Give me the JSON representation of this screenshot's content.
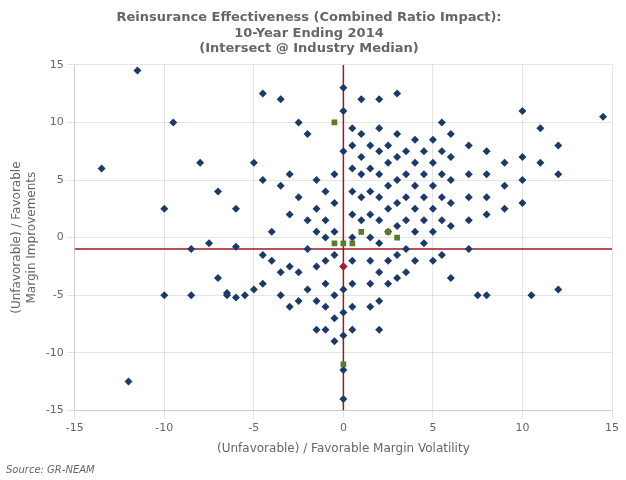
{
  "chart_data": {
    "type": "scatter",
    "title": [
      "Reinsurance Effectiveness (Combined Ratio Impact):",
      "10-Year Ending 2014",
      "(Intersect @ Industry Median)"
    ],
    "x_label": "(Unfavorable) / Favorable Margin Volatility",
    "y_label": [
      "(Unfavorable) / Favorable",
      "Margin Improvements"
    ],
    "source": "Source: GR-NEAM",
    "xlim": [
      -15,
      15
    ],
    "ylim": [
      -15,
      15
    ],
    "xticks": [
      -15,
      -10,
      -5,
      0,
      5,
      10,
      15
    ],
    "yticks": [
      -15,
      -10,
      -5,
      0,
      5,
      10,
      15
    ],
    "grid": true,
    "vlines": [
      {
        "x": 0,
        "color": "#9B1B1B"
      }
    ],
    "hlines": [
      {
        "y": -1.0,
        "color": "#9B1B1B"
      }
    ],
    "series": [
      {
        "color": "#1B3A6B",
        "marker": "diamond",
        "x": [
          -13.5,
          -11.5,
          -9.5,
          -10.0,
          -8.0,
          -12.0,
          -10.0,
          -8.5,
          -7.0,
          -6.5,
          -4.5,
          -3.5,
          -2.5,
          -4.5,
          -3.5,
          -3.0,
          -5.0,
          -2.0,
          -1.5,
          -1.0,
          -0.5,
          -4.0,
          -3.0,
          -2.5,
          -2.0,
          -1.5,
          -1.0,
          -0.5,
          -4.5,
          -4.0,
          -3.5,
          -3.0,
          -2.5,
          -2.0,
          -1.5,
          -1.0,
          -0.5,
          -0.5,
          -1.5,
          -1.0,
          -3.0,
          -2.5,
          -2.0,
          -1.5,
          -1.0,
          -0.5,
          -1.5,
          -1.0,
          -0.5,
          -0.5,
          -1.0,
          -3.5,
          -4.5,
          -5.5,
          -5.0,
          -6.0,
          -7.0,
          -6.0,
          -7.5,
          -8.5,
          -6.0,
          -6.5,
          0.0,
          0.0,
          0.5,
          0.0,
          0.5,
          1.0,
          0.5,
          1.0,
          1.5,
          2.0,
          2.5,
          3.0,
          3.5,
          4.0,
          4.5,
          5.0,
          5.5,
          6.0,
          3.0,
          2.0,
          1.0,
          7.0,
          5.5,
          8.0,
          9.0,
          10.0,
          10.0,
          11.0,
          12.0,
          14.5,
          0.5,
          1.0,
          1.5,
          2.0,
          2.5,
          3.0,
          3.5,
          4.0,
          4.5,
          5.0,
          5.5,
          6.0,
          7.0,
          8.0,
          9.0,
          10.0,
          11.0,
          12.0,
          0.5,
          1.0,
          1.5,
          2.0,
          2.5,
          3.0,
          3.5,
          4.0,
          4.5,
          5.0,
          5.5,
          6.0,
          7.0,
          8.0,
          9.0,
          10.0,
          0.5,
          1.0,
          1.5,
          2.0,
          2.5,
          3.0,
          3.5,
          4.0,
          4.5,
          5.0,
          5.5,
          6.0,
          7.0,
          8.0,
          1.5,
          2.0,
          2.5,
          3.0,
          3.5,
          4.0,
          4.5,
          5.0,
          5.5,
          6.0,
          7.0,
          8.0,
          1.5,
          2.0,
          2.5,
          3.0,
          3.5,
          4.0,
          5.0,
          1.5,
          2.0,
          2.5,
          3.0,
          1.5,
          2.0,
          2.0,
          0.0,
          0.0,
          0.5,
          0.0,
          0.5,
          0.5,
          0.5,
          0.0,
          0.0,
          0.0,
          6.0,
          7.5,
          10.5,
          12.0
        ],
        "values": [
          6.0,
          14.5,
          10.0,
          2.5,
          6.5,
          -12.5,
          -5.0,
          -5.0,
          -3.5,
          -5.0,
          12.5,
          12.0,
          10.0,
          5.0,
          4.5,
          5.5,
          6.5,
          9.0,
          5.0,
          4.0,
          5.5,
          0.5,
          2.0,
          3.5,
          1.5,
          2.5,
          1.5,
          3.0,
          -1.5,
          -2.0,
          -3.0,
          -2.5,
          -3.0,
          -1.0,
          0.5,
          0.0,
          0.5,
          -1.5,
          -2.5,
          -2.0,
          -6.0,
          -5.5,
          -4.5,
          -5.5,
          -4.0,
          -5.0,
          -8.0,
          -6.0,
          -7.0,
          -9.0,
          -8.0,
          -5.0,
          -4.0,
          -5.0,
          -4.5,
          2.5,
          4.0,
          -0.8,
          -0.5,
          -1.0,
          -5.2,
          -4.8,
          13.0,
          11.0,
          9.5,
          7.5,
          8.0,
          9.0,
          6.0,
          7.0,
          8.0,
          9.5,
          8.0,
          9.0,
          7.5,
          8.5,
          7.5,
          8.5,
          7.5,
          9.0,
          12.5,
          12.0,
          12.0,
          8.0,
          10.0,
          7.5,
          6.5,
          7.0,
          11.0,
          9.5,
          8.0,
          10.5,
          4.0,
          5.5,
          6.0,
          7.5,
          6.5,
          7.0,
          5.5,
          6.5,
          5.5,
          6.5,
          5.5,
          7.0,
          5.5,
          5.5,
          4.5,
          5.0,
          6.5,
          5.5,
          2.0,
          3.5,
          4.0,
          5.5,
          4.5,
          5.0,
          3.5,
          4.5,
          3.5,
          4.5,
          3.5,
          5.0,
          3.5,
          3.5,
          2.5,
          3.0,
          0.0,
          1.5,
          2.0,
          3.5,
          2.5,
          3.0,
          1.5,
          2.5,
          1.5,
          2.5,
          1.5,
          3.0,
          1.5,
          2.0,
          0.0,
          1.5,
          0.5,
          1.0,
          -1.0,
          0.5,
          -0.5,
          0.5,
          -1.5,
          1.0,
          -1.0,
          -5.0,
          -2.0,
          -0.5,
          -2.0,
          -1.5,
          -3.0,
          -2.0,
          -2.0,
          -4.0,
          -3.0,
          -4.0,
          -3.5,
          -6.0,
          -5.5,
          -8.0,
          -4.5,
          -2.5,
          -2.0,
          -6.5,
          -4.0,
          -6.0,
          -8.0,
          -8.5,
          -11.5,
          -14.0,
          -3.5,
          -5.0,
          -5.0,
          -4.5
        ]
      },
      {
        "color": "#5B7B2A",
        "marker": "square",
        "x": [
          -0.5,
          -0.5,
          0.0,
          0.5,
          1.0,
          2.5,
          3.0,
          0.0
        ],
        "values": [
          10.0,
          -0.5,
          -0.5,
          -0.5,
          0.5,
          0.5,
          0.0,
          -11.0
        ]
      },
      {
        "color": "#B5182A",
        "marker": "diamond",
        "x": [
          0.0
        ],
        "values": [
          -2.5
        ]
      }
    ]
  }
}
